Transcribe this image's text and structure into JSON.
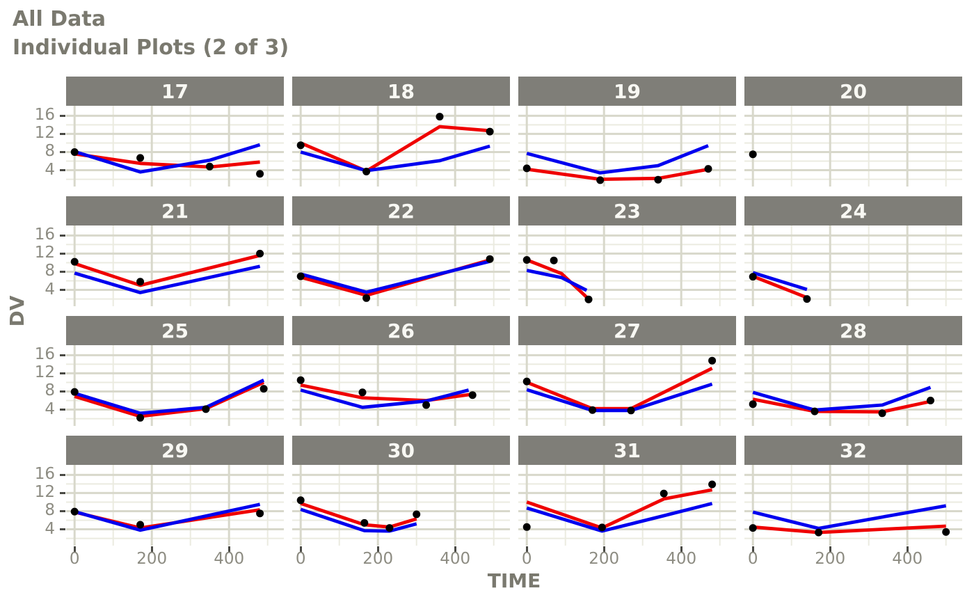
{
  "title": "All Data",
  "subtitle": "Individual Plots (2 of 3)",
  "colors": {
    "title_text": "#7A796F",
    "axis_text": "#8D8C82",
    "tick_mark": "#4A4A45",
    "strip_bg": "#7F7E78",
    "strip_text": "#F8F8F3",
    "panel_bg": "#FFFFFF",
    "grid_major": "#D8D8CB",
    "grid_minor": "#EBEBE0",
    "point": "#000000",
    "ipred_line": "#EF0000",
    "pred_line": "#0000EF"
  },
  "x_axis": {
    "label": "TIME",
    "tick_labels": [
      "0",
      "200",
      "400"
    ],
    "ticks": [
      0,
      200,
      400
    ],
    "minor_ticks": [
      100,
      300,
      500
    ],
    "range": [
      -22,
      542
    ]
  },
  "y_axis": {
    "label": "DV",
    "tick_labels": [
      "16",
      "12",
      "8",
      "4"
    ],
    "ticks": [
      16,
      12,
      8,
      4
    ],
    "minor_ticks": [
      2,
      6,
      10,
      14
    ],
    "range": [
      0.4,
      18.2
    ]
  },
  "chart_data": {
    "type": "line",
    "facet_by": "ID",
    "title": "All Data",
    "subtitle": "Individual Plots (2 of 3)",
    "xlabel": "TIME",
    "ylabel": "DV",
    "xlim": [
      -22,
      542
    ],
    "ylim": [
      0.4,
      18.2
    ],
    "grid": true,
    "legend_position": "none",
    "series_names": [
      "observations (black points)",
      "IPRED (red line)",
      "PRED (blue line)"
    ],
    "facets": [
      {
        "id": "17",
        "points": [
          [
            0,
            8.0
          ],
          [
            170,
            6.7
          ],
          [
            350,
            4.8
          ],
          [
            480,
            3.2
          ]
        ],
        "ipred": [
          [
            0,
            7.6
          ],
          [
            170,
            5.5
          ],
          [
            350,
            4.7
          ],
          [
            480,
            5.8
          ]
        ],
        "pred": [
          [
            0,
            8.1
          ],
          [
            170,
            3.6
          ],
          [
            350,
            6.2
          ],
          [
            480,
            9.6
          ]
        ]
      },
      {
        "id": "18",
        "points": [
          [
            0,
            9.5
          ],
          [
            170,
            3.7
          ],
          [
            360,
            15.8
          ],
          [
            490,
            12.5
          ]
        ],
        "ipred": [
          [
            0,
            10.0
          ],
          [
            170,
            3.8
          ],
          [
            360,
            13.6
          ],
          [
            490,
            12.7
          ]
        ],
        "pred": [
          [
            0,
            8.0
          ],
          [
            170,
            3.9
          ],
          [
            360,
            6.1
          ],
          [
            490,
            9.3
          ]
        ]
      },
      {
        "id": "19",
        "points": [
          [
            0,
            4.4
          ],
          [
            190,
            1.8
          ],
          [
            340,
            1.9
          ],
          [
            470,
            4.3
          ]
        ],
        "ipred": [
          [
            0,
            4.2
          ],
          [
            190,
            2.0
          ],
          [
            340,
            2.2
          ],
          [
            470,
            4.2
          ]
        ],
        "pred": [
          [
            0,
            7.7
          ],
          [
            190,
            3.4
          ],
          [
            340,
            5.0
          ],
          [
            470,
            9.4
          ]
        ]
      },
      {
        "id": "20",
        "points": [
          [
            0,
            7.5
          ]
        ],
        "ipred": [],
        "pred": []
      },
      {
        "id": "21",
        "points": [
          [
            0,
            10.2
          ],
          [
            170,
            5.8
          ],
          [
            480,
            12.0
          ]
        ],
        "ipred": [
          [
            0,
            9.8
          ],
          [
            170,
            5.0
          ],
          [
            480,
            11.6
          ]
        ],
        "pred": [
          [
            0,
            7.7
          ],
          [
            170,
            3.4
          ],
          [
            480,
            9.2
          ]
        ]
      },
      {
        "id": "22",
        "points": [
          [
            0,
            7.0
          ],
          [
            170,
            2.2
          ],
          [
            490,
            10.8
          ]
        ],
        "ipred": [
          [
            0,
            6.8
          ],
          [
            170,
            2.8
          ],
          [
            490,
            10.6
          ]
        ],
        "pred": [
          [
            0,
            7.5
          ],
          [
            170,
            3.5
          ],
          [
            490,
            10.3
          ]
        ]
      },
      {
        "id": "23",
        "points": [
          [
            0,
            10.6
          ],
          [
            70,
            10.5
          ],
          [
            160,
            1.9
          ]
        ],
        "ipred": [
          [
            0,
            10.6
          ],
          [
            90,
            7.6
          ],
          [
            155,
            2.4
          ]
        ],
        "pred": [
          [
            0,
            8.3
          ],
          [
            90,
            6.7
          ],
          [
            155,
            3.9
          ]
        ]
      },
      {
        "id": "24",
        "points": [
          [
            0,
            6.9
          ],
          [
            140,
            2.0
          ]
        ],
        "ipred": [
          [
            0,
            7.0
          ],
          [
            140,
            2.3
          ]
        ],
        "pred": [
          [
            0,
            7.8
          ],
          [
            140,
            4.1
          ]
        ]
      },
      {
        "id": "25",
        "points": [
          [
            0,
            7.9
          ],
          [
            170,
            2.2
          ],
          [
            340,
            4.1
          ],
          [
            490,
            8.6
          ]
        ],
        "ipred": [
          [
            0,
            6.9
          ],
          [
            170,
            2.5
          ],
          [
            340,
            4.2
          ],
          [
            490,
            10.0
          ]
        ],
        "pred": [
          [
            0,
            7.6
          ],
          [
            170,
            3.2
          ],
          [
            340,
            4.5
          ],
          [
            490,
            10.5
          ]
        ]
      },
      {
        "id": "26",
        "points": [
          [
            0,
            10.5
          ],
          [
            160,
            7.8
          ],
          [
            325,
            5.0
          ],
          [
            445,
            7.2
          ]
        ],
        "ipred": [
          [
            0,
            9.4
          ],
          [
            160,
            6.6
          ],
          [
            325,
            6.0
          ],
          [
            445,
            7.4
          ]
        ],
        "pred": [
          [
            0,
            8.3
          ],
          [
            160,
            4.5
          ],
          [
            325,
            5.9
          ],
          [
            435,
            8.3
          ]
        ]
      },
      {
        "id": "27",
        "points": [
          [
            0,
            10.2
          ],
          [
            170,
            3.9
          ],
          [
            270,
            3.8
          ],
          [
            480,
            14.8
          ]
        ],
        "ipred": [
          [
            0,
            10.0
          ],
          [
            170,
            4.2
          ],
          [
            270,
            4.2
          ],
          [
            480,
            13.1
          ]
        ],
        "pred": [
          [
            0,
            8.4
          ],
          [
            170,
            3.8
          ],
          [
            270,
            3.8
          ],
          [
            480,
            9.6
          ]
        ]
      },
      {
        "id": "28",
        "points": [
          [
            0,
            5.2
          ],
          [
            160,
            3.6
          ],
          [
            335,
            3.2
          ],
          [
            460,
            6.0
          ]
        ],
        "ipred": [
          [
            0,
            6.3
          ],
          [
            160,
            3.6
          ],
          [
            335,
            3.5
          ],
          [
            460,
            5.8
          ]
        ],
        "pred": [
          [
            0,
            7.8
          ],
          [
            160,
            3.9
          ],
          [
            335,
            5.0
          ],
          [
            460,
            8.9
          ]
        ]
      },
      {
        "id": "29",
        "points": [
          [
            0,
            7.9
          ],
          [
            170,
            5.0
          ],
          [
            480,
            7.5
          ]
        ],
        "ipred": [
          [
            0,
            7.8
          ],
          [
            170,
            4.3
          ],
          [
            480,
            8.3
          ]
        ],
        "pred": [
          [
            0,
            7.9
          ],
          [
            170,
            3.8
          ],
          [
            480,
            9.5
          ]
        ]
      },
      {
        "id": "30",
        "points": [
          [
            0,
            10.4
          ],
          [
            165,
            5.4
          ],
          [
            230,
            4.3
          ],
          [
            300,
            7.3
          ]
        ],
        "ipred": [
          [
            0,
            9.7
          ],
          [
            165,
            5.0
          ],
          [
            230,
            4.5
          ],
          [
            300,
            6.3
          ]
        ],
        "pred": [
          [
            0,
            8.4
          ],
          [
            165,
            3.7
          ],
          [
            230,
            3.6
          ],
          [
            300,
            5.2
          ]
        ]
      },
      {
        "id": "31",
        "points": [
          [
            0,
            4.5
          ],
          [
            195,
            4.4
          ],
          [
            355,
            11.9
          ],
          [
            480,
            13.9
          ]
        ],
        "ipred": [
          [
            0,
            10.0
          ],
          [
            195,
            4.3
          ],
          [
            355,
            10.7
          ],
          [
            480,
            12.7
          ]
        ],
        "pred": [
          [
            0,
            8.7
          ],
          [
            195,
            3.6
          ],
          [
            355,
            7.0
          ],
          [
            480,
            9.7
          ]
        ]
      },
      {
        "id": "32",
        "points": [
          [
            0,
            4.3
          ],
          [
            170,
            3.3
          ],
          [
            500,
            3.4
          ]
        ],
        "ipred": [
          [
            0,
            4.5
          ],
          [
            170,
            3.3
          ],
          [
            500,
            4.7
          ]
        ],
        "pred": [
          [
            0,
            7.8
          ],
          [
            170,
            4.2
          ],
          [
            500,
            9.2
          ]
        ]
      }
    ]
  }
}
